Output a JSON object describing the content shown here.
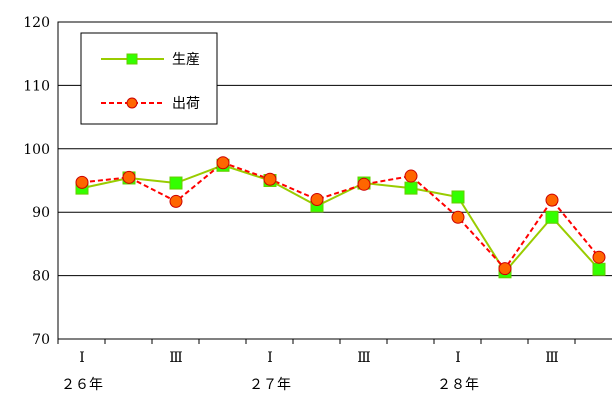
{
  "chart_data": {
    "type": "line",
    "title": "",
    "xlabel": "",
    "ylabel": "",
    "ylim": [
      70,
      120
    ],
    "yticks": [
      70,
      80,
      90,
      100,
      110,
      120
    ],
    "grid": "horizontal",
    "legend_position": "top-left",
    "x_tick_labels": [
      "Ⅰ",
      "Ⅲ",
      "Ⅰ",
      "Ⅲ",
      "Ⅰ",
      "Ⅲ"
    ],
    "year_labels": [
      "２６年",
      "２７年",
      "２８年"
    ],
    "series": [
      {
        "name": "生産",
        "color": "#99cc00",
        "marker": "square",
        "marker_color": "#33ff00",
        "line_style": "solid",
        "values": [
          93.8,
          95.4,
          94.6,
          97.4,
          95.0,
          91.0,
          94.6,
          93.8,
          92.4,
          80.6,
          89.2,
          81.0
        ]
      },
      {
        "name": "出荷",
        "color": "#ff0000",
        "marker": "circle",
        "marker_color": "#ff6600",
        "line_style": "dashed",
        "values": [
          94.7,
          95.5,
          91.7,
          97.8,
          95.2,
          92.0,
          94.4,
          95.7,
          89.2,
          81.1,
          91.9,
          82.9
        ]
      }
    ]
  }
}
